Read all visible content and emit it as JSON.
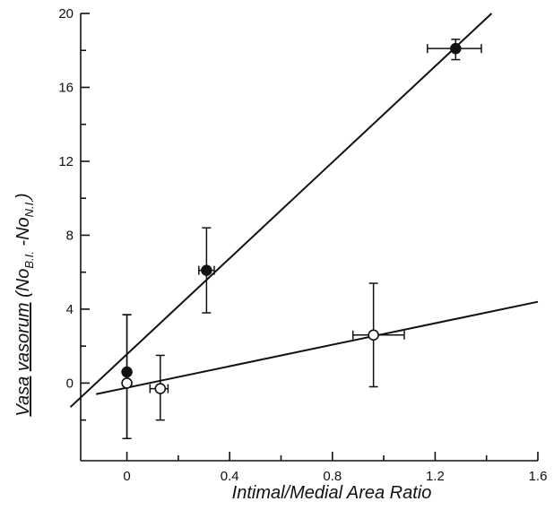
{
  "chart_data": {
    "type": "scatter",
    "xlabel": "Intimal/Medial  Area Ratio",
    "ylabel_parts": {
      "underlined_a": "Vasa",
      "underlined_b": "vasorum",
      "open_paren": "(No",
      "sub_bi": "B.I.",
      "minus": " -No",
      "sub_ni": "N.I.",
      "close_paren": ")"
    },
    "xlim": [
      -0.18,
      1.6
    ],
    "ylim": [
      -4.2,
      20
    ],
    "x_ticks": [
      0,
      0.4,
      0.8,
      1.2,
      1.6
    ],
    "x_tick_labels": [
      "0",
      "0.4",
      "0.8",
      "1.2",
      "1.6"
    ],
    "y_ticks": [
      0,
      4,
      8,
      12,
      16,
      20
    ],
    "y_tick_labels": [
      "0",
      "4",
      "8",
      "12",
      "16",
      "20"
    ],
    "y_minor_ticks": [
      -2,
      2,
      6,
      10,
      14,
      18
    ],
    "series": [
      {
        "marker": "filled",
        "points": [
          {
            "x": 0.0,
            "y": 0.6,
            "ylo": -3.0,
            "yhi": 3.7
          },
          {
            "x": 0.31,
            "y": 6.1,
            "ylo": 3.8,
            "yhi": 8.4,
            "xlo": 0.28,
            "xhi": 0.34
          },
          {
            "x": 1.28,
            "y": 18.1,
            "ylo": 17.5,
            "yhi": 18.6,
            "xlo": 1.17,
            "xhi": 1.38
          }
        ],
        "fit": {
          "x0": -0.22,
          "y0": -1.3,
          "x1": 1.42,
          "y1": 20.0
        }
      },
      {
        "marker": "open",
        "points": [
          {
            "x": 0.0,
            "y": 0.0,
            "ylo": -3.0,
            "yhi": 3.7
          },
          {
            "x": 0.13,
            "y": -0.3,
            "ylo": -2.0,
            "yhi": 1.5,
            "xlo": 0.09,
            "xhi": 0.16
          },
          {
            "x": 0.96,
            "y": 2.6,
            "ylo": -0.2,
            "yhi": 5.4,
            "xlo": 0.88,
            "xhi": 1.08
          }
        ],
        "fit": {
          "x0": -0.12,
          "y0": -0.6,
          "x1": 1.6,
          "y1": 4.4
        }
      }
    ],
    "grid": false,
    "legend": "none"
  }
}
